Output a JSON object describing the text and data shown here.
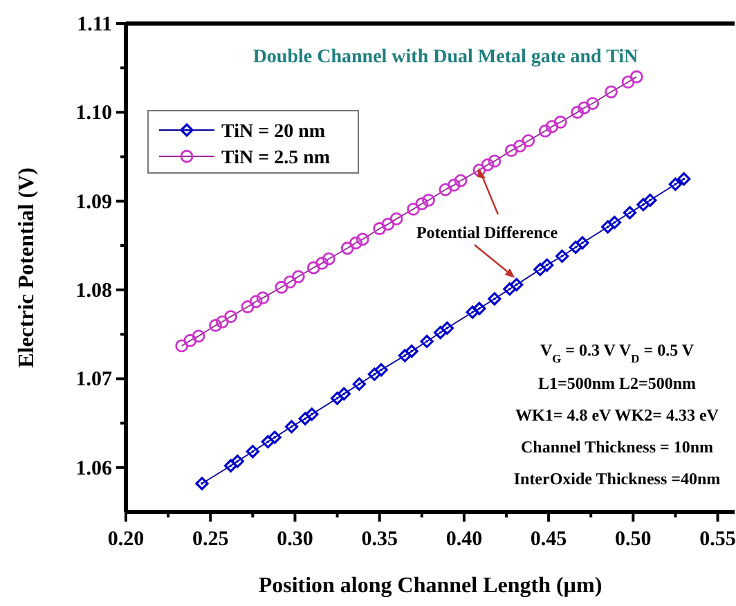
{
  "chart_data": {
    "type": "line",
    "title": "Double Channel with Dual Metal gate and TiN",
    "xlabel": "Position along Channel Length (µm)",
    "ylabel": "Electric Potential (V)",
    "xlim": [
      0.2,
      0.56
    ],
    "ylim": [
      1.055,
      1.11
    ],
    "xticks": [
      {
        "value": 0.2,
        "label": "0.20"
      },
      {
        "value": 0.225,
        "label": null
      },
      {
        "value": 0.25,
        "label": "0.25"
      },
      {
        "value": 0.275,
        "label": null
      },
      {
        "value": 0.3,
        "label": "0.30"
      },
      {
        "value": 0.325,
        "label": null
      },
      {
        "value": 0.35,
        "label": "0.35"
      },
      {
        "value": 0.375,
        "label": null
      },
      {
        "value": 0.4,
        "label": "0.40"
      },
      {
        "value": 0.425,
        "label": null
      },
      {
        "value": 0.45,
        "label": "0.45"
      },
      {
        "value": 0.475,
        "label": null
      },
      {
        "value": 0.5,
        "label": "0.50"
      },
      {
        "value": 0.525,
        "label": null
      },
      {
        "value": 0.55,
        "label": "0.55"
      }
    ],
    "yticks": [
      {
        "value": 1.06,
        "label": "1.06"
      },
      {
        "value": 1.065,
        "label": null
      },
      {
        "value": 1.07,
        "label": "1.07"
      },
      {
        "value": 1.075,
        "label": null
      },
      {
        "value": 1.08,
        "label": "1.08"
      },
      {
        "value": 1.085,
        "label": null
      },
      {
        "value": 1.09,
        "label": "1.09"
      },
      {
        "value": 1.095,
        "label": null
      },
      {
        "value": 1.1,
        "label": "1.10"
      },
      {
        "value": 1.105,
        "label": null
      },
      {
        "value": 1.11,
        "label": "1.11"
      }
    ],
    "grid": false,
    "legend": "top left",
    "line_style": "solid",
    "series": [
      {
        "name": "TiN = 20 nm",
        "color": "#0000cc",
        "marker": "diamond",
        "x": [
          0.245,
          0.262,
          0.266,
          0.275,
          0.284,
          0.288,
          0.298,
          0.306,
          0.31,
          0.325,
          0.329,
          0.338,
          0.347,
          0.351,
          0.365,
          0.369,
          0.378,
          0.386,
          0.39,
          0.405,
          0.409,
          0.418,
          0.427,
          0.431,
          0.445,
          0.449,
          0.458,
          0.466,
          0.47,
          0.485,
          0.489,
          0.498,
          0.506,
          0.51,
          0.525,
          0.53
        ],
        "values": [
          1.0582,
          1.0602,
          1.0607,
          1.0618,
          1.0629,
          1.0634,
          1.0646,
          1.0655,
          1.066,
          1.0678,
          1.0683,
          1.0694,
          1.0705,
          1.071,
          1.0726,
          1.0731,
          1.0742,
          1.0752,
          1.0757,
          1.0775,
          1.0779,
          1.079,
          1.0801,
          1.0806,
          1.0823,
          1.0828,
          1.0838,
          1.0848,
          1.0853,
          1.0871,
          1.0876,
          1.0887,
          1.0896,
          1.0901,
          1.0919,
          1.0925
        ]
      },
      {
        "name": "TiN = 2.5 nm",
        "color": "#cc33cc",
        "marker": "circle",
        "x": [
          0.233,
          0.238,
          0.243,
          0.253,
          0.257,
          0.262,
          0.272,
          0.277,
          0.281,
          0.292,
          0.297,
          0.302,
          0.311,
          0.316,
          0.32,
          0.331,
          0.336,
          0.34,
          0.35,
          0.355,
          0.36,
          0.37,
          0.375,
          0.379,
          0.389,
          0.394,
          0.398,
          0.409,
          0.414,
          0.418,
          0.428,
          0.433,
          0.438,
          0.448,
          0.452,
          0.457,
          0.467,
          0.471,
          0.476,
          0.487,
          0.497,
          0.502
        ],
        "values": [
          1.0737,
          1.0743,
          1.0748,
          1.076,
          1.0764,
          1.077,
          1.0781,
          1.0787,
          1.0791,
          1.0803,
          1.0809,
          1.0815,
          1.0825,
          1.083,
          1.0835,
          1.0847,
          1.0853,
          1.0857,
          1.0869,
          1.0874,
          1.088,
          1.0891,
          1.0897,
          1.0901,
          1.0913,
          1.0918,
          1.0923,
          1.0935,
          1.0941,
          1.0945,
          1.0957,
          1.0962,
          1.0968,
          1.0979,
          1.0984,
          1.0989,
          1.1,
          1.1005,
          1.101,
          1.1023,
          1.1034,
          1.104
        ]
      }
    ],
    "annotations": [
      {
        "text": "Potential Difference",
        "x": 0.43,
        "y": 1.0806
      },
      "V$_{G}$ = 0.3 V V$_{D}$ = 0.5 V",
      "L1=500nm L2=500nm",
      "WK1= 4.8 eV WK2= 4.33 eV",
      "Channel Thickness = 10nm",
      "InterOxide Thickness =40nm"
    ]
  }
}
